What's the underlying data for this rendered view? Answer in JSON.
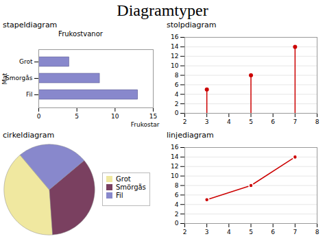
{
  "title": "Diagramtyper",
  "chart_data": [
    {
      "type": "bar",
      "title": "stapeldiagram",
      "subtitle": "Frukostvanor",
      "orientation": "horizontal",
      "categories": [
        "Fil",
        "Smorgås",
        "Grot"
      ],
      "values": [
        13,
        8,
        4
      ],
      "color": "#8888cc",
      "xlabel": "Frukostar",
      "ylabel": "Mat",
      "xlim": [
        0,
        15
      ],
      "xticks": [
        0,
        5,
        10,
        15
      ]
    },
    {
      "type": "stem",
      "title": "stolpdiagram",
      "x": [
        3,
        5,
        7
      ],
      "values": [
        5,
        8,
        14
      ],
      "color": "#cc0000",
      "marker": "circle",
      "xlim": [
        2,
        8
      ],
      "xticks": [
        2,
        3,
        4,
        5,
        6,
        7,
        8
      ],
      "ylim": [
        0,
        16
      ],
      "yticks": [
        0,
        2,
        4,
        6,
        8,
        10,
        12,
        14,
        16
      ],
      "grid": true
    },
    {
      "type": "pie",
      "title": "cirkeldiagram",
      "categories": [
        "Grot",
        "Smörgås",
        "Fil"
      ],
      "values": [
        40,
        35,
        25
      ],
      "colors": [
        "#f0e8a0",
        "#7a4060",
        "#8888cc"
      ],
      "legend": "right"
    },
    {
      "type": "line",
      "title": "linjediagram",
      "x": [
        3,
        5,
        7
      ],
      "values": [
        5,
        8,
        14
      ],
      "color": "#cc0000",
      "marker": "circle",
      "xlim": [
        2,
        8
      ],
      "xticks": [
        2,
        3,
        4,
        5,
        6,
        7,
        8
      ],
      "ylim": [
        0,
        16
      ],
      "yticks": [
        0,
        2,
        4,
        6,
        8,
        10,
        12,
        14,
        16
      ],
      "grid": true
    }
  ]
}
